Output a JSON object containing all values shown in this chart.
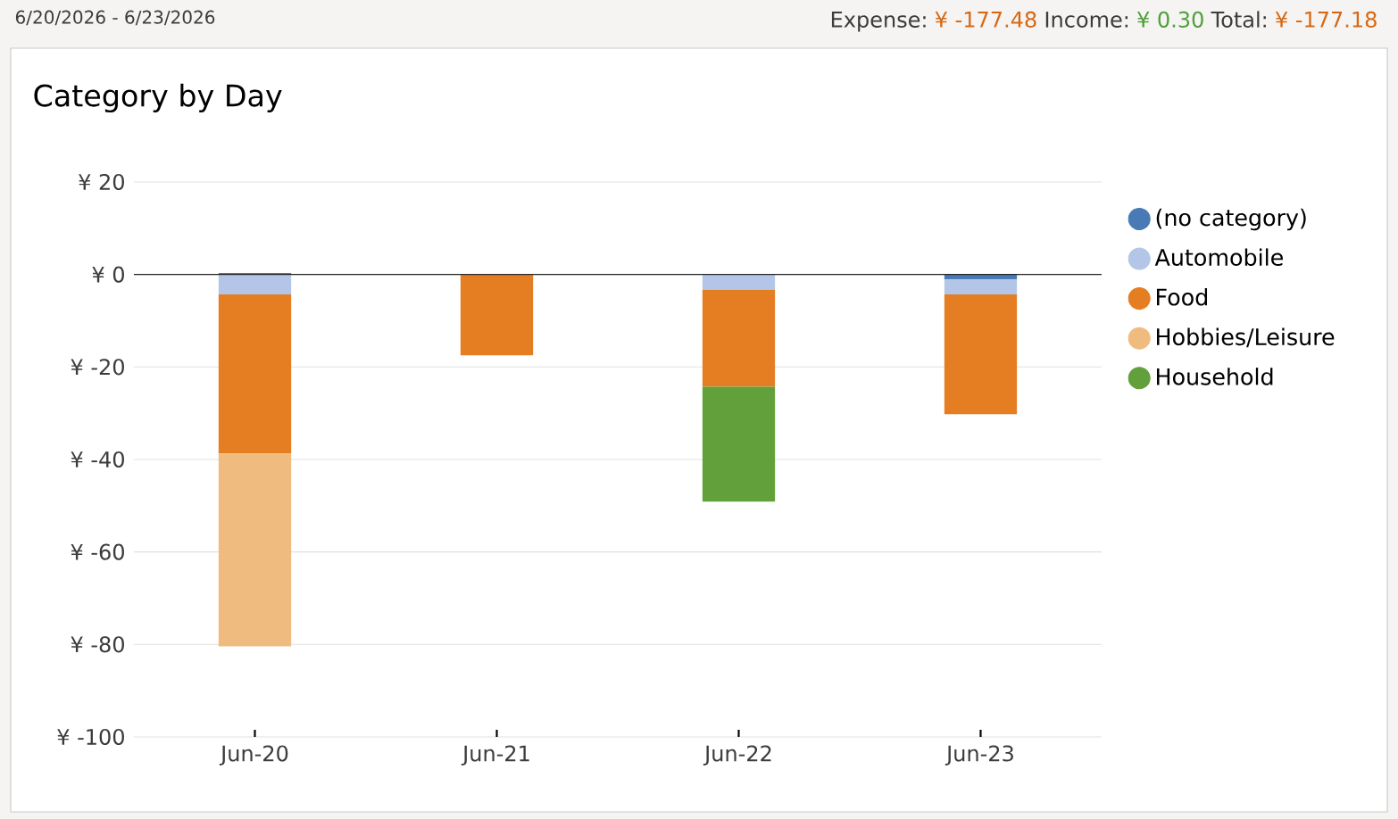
{
  "chart_data": {
    "type": "bar",
    "stacked": true,
    "title": "Category by Day",
    "annotations": [
      "6/20/2026 - 6/23/2026",
      "Expense:",
      "¥ -177.48",
      "Income:",
      "¥ 0.30",
      "Total:",
      "¥ -177.18"
    ],
    "categories": [
      "Jun-20",
      "Jun-21",
      "Jun-22",
      "Jun-23"
    ],
    "series": [
      {
        "name": "(no category)",
        "color": "#4a7ab5",
        "values": [
          0.3,
          null,
          null,
          -1.1
        ]
      },
      {
        "name": "Automobile",
        "color": "#b3c6e7",
        "values": [
          -4.3,
          null,
          -3.3,
          -3.2
        ]
      },
      {
        "name": "Food",
        "color": "#e57e22",
        "values": [
          -34.4,
          -17.5,
          -21.0,
          -25.9
        ]
      },
      {
        "name": "Hobbies/Leisure",
        "color": "#f0bb7e",
        "values": [
          -41.7,
          null,
          null,
          null
        ]
      },
      {
        "name": "Household",
        "color": "#62a03b",
        "values": [
          null,
          null,
          -24.8,
          null
        ]
      }
    ],
    "ylim": [
      -100,
      20
    ],
    "yticks": [
      {
        "value": 20,
        "label": "¥ 20"
      },
      {
        "value": 0,
        "label": "¥ 0"
      },
      {
        "value": -20,
        "label": "¥ -20"
      },
      {
        "value": -40,
        "label": "¥ -40"
      },
      {
        "value": -60,
        "label": "¥ -60"
      },
      {
        "value": -80,
        "label": "¥ -80"
      },
      {
        "value": -100,
        "label": "¥ -100"
      }
    ],
    "grid": "y",
    "legend": "right",
    "marker": "circle"
  }
}
